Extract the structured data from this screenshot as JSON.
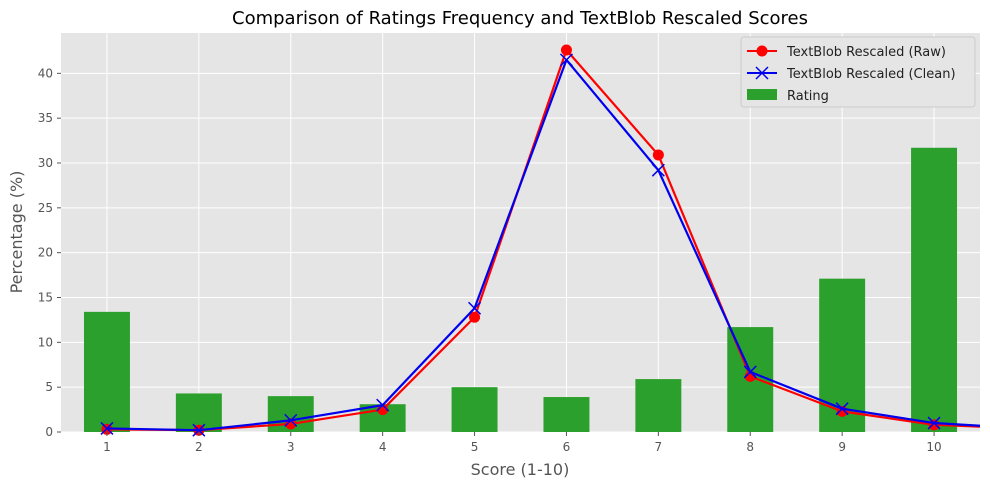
{
  "chart_data": {
    "type": "bar",
    "title": "Comparison of Ratings Frequency and TextBlob Rescaled Scores",
    "xlabel": "Score (1-10)",
    "ylabel": "Percentage (%)",
    "categories": [
      "1",
      "2",
      "3",
      "4",
      "5",
      "6",
      "7",
      "8",
      "9",
      "10"
    ],
    "xlim": [
      0.5,
      10.5
    ],
    "ylim": [
      0,
      44.5
    ],
    "yticks": [
      0,
      5,
      10,
      15,
      20,
      25,
      30,
      35,
      40
    ],
    "grid": true,
    "legend_position": "top-right",
    "bar_series": {
      "name": "Rating",
      "color": "#2ca02c",
      "values": [
        13.4,
        4.3,
        4.0,
        3.1,
        5.0,
        3.9,
        5.9,
        11.7,
        17.1,
        31.7
      ]
    },
    "line_series": [
      {
        "name": "TextBlob Rescaled (Raw)",
        "color": "#ff0000",
        "marker": "circle",
        "x": [
          1,
          2,
          3,
          4,
          5,
          6,
          7,
          8,
          9,
          10,
          10.5
        ],
        "values": [
          0.3,
          0.2,
          0.9,
          2.5,
          12.8,
          42.6,
          30.9,
          6.2,
          2.3,
          0.8,
          0.6
        ]
      },
      {
        "name": "TextBlob Rescaled (Clean)",
        "color": "#0000ee",
        "marker": "x",
        "x": [
          1,
          2,
          3,
          4,
          5,
          6,
          7,
          8,
          9,
          10,
          10.5
        ],
        "values": [
          0.4,
          0.2,
          1.3,
          3.0,
          13.8,
          41.5,
          29.2,
          6.7,
          2.6,
          1.0,
          0.7
        ]
      }
    ]
  }
}
